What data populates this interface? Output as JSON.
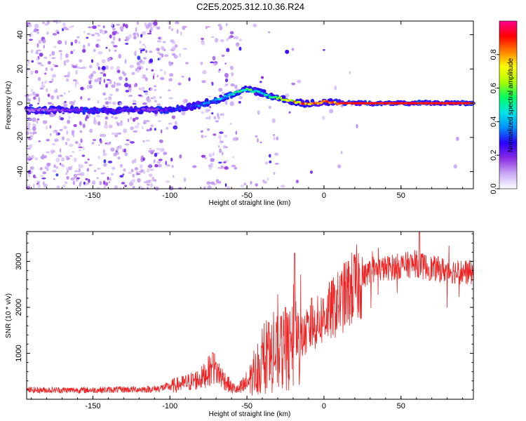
{
  "title": "C2E5.2025.312.10.36.R24",
  "chart_data": [
    {
      "type": "heatmap",
      "name": "spectrogram",
      "xlabel": "Height of straight line (km)",
      "ylabel": "Frequency (Hz)",
      "xlim": [
        -193,
        97
      ],
      "ylim": [
        -50,
        48
      ],
      "xticks": [
        -150,
        -100,
        -50,
        0,
        50
      ],
      "xtick_labels": [
        "-150",
        "-100",
        "-50",
        "0",
        "50"
      ],
      "yticks": [
        -40,
        -20,
        0,
        20,
        40
      ],
      "ytick_labels": [
        "-40",
        "-20",
        "0",
        "20",
        "40"
      ],
      "colorbar": {
        "label": "Normalized spectral amplitude",
        "range": [
          0,
          1
        ],
        "ticks": [
          0.0,
          0.2,
          0.4,
          0.6,
          0.8
        ],
        "tick_labels": [
          "0.0",
          "0.2",
          "0.4",
          "0.6",
          "0.8"
        ],
        "colors": [
          "#ffffff",
          "#c9a8f5",
          "#8a2be2",
          "#2a00ff",
          "#0090ff",
          "#00e5e5",
          "#00ff60",
          "#aaff00",
          "#ffff00",
          "#ff8000",
          "#ff0000",
          "#ff0090"
        ]
      },
      "ridge": {
        "x": [
          -193,
          -170,
          -150,
          -130,
          -110,
          -100,
          -90,
          -80,
          -70,
          -60,
          -55,
          -50,
          -45,
          -40,
          -35,
          -30,
          -25,
          -20,
          -15,
          -10,
          -5,
          0,
          5,
          10,
          20,
          40,
          60,
          97
        ],
        "freq": [
          -4,
          -4,
          -4,
          -4,
          -4,
          -4,
          -3,
          -1,
          2,
          5,
          7,
          8,
          7,
          6,
          4,
          3,
          2,
          1,
          0,
          -0.5,
          0,
          1,
          0.5,
          0,
          0,
          0,
          0,
          0
        ],
        "amplitude": [
          0.15,
          0.2,
          0.3,
          0.25,
          0.2,
          0.25,
          0.3,
          0.35,
          0.4,
          0.45,
          0.55,
          0.6,
          0.5,
          0.45,
          0.5,
          0.55,
          0.65,
          0.75,
          0.85,
          0.9,
          0.8,
          0.85,
          0.9,
          0.95,
          0.95,
          0.95,
          0.95,
          0.95
        ]
      }
    },
    {
      "type": "line",
      "name": "snr",
      "xlabel": "Height of straight line (km)",
      "ylabel": "SNR (10 * v/v)",
      "xlim": [
        -193,
        97
      ],
      "ylim": [
        0,
        3650
      ],
      "xticks": [
        -150,
        -100,
        -50,
        0,
        50
      ],
      "xtick_labels": [
        "-150",
        "-100",
        "-50",
        "0",
        "50"
      ],
      "yticks": [
        1000,
        2000,
        3000
      ],
      "ytick_labels": [
        "1000",
        "2000",
        "3000"
      ],
      "color": "#ee2222",
      "envelope": {
        "x": [
          -193,
          -150,
          -110,
          -100,
          -90,
          -80,
          -72,
          -68,
          -60,
          -55,
          -50,
          -45,
          -40,
          -35,
          -30,
          -25,
          -20,
          -15,
          -10,
          -5,
          0,
          5,
          10,
          15,
          20,
          25,
          30,
          40,
          50,
          60,
          70,
          80,
          97
        ],
        "y": [
          200,
          200,
          220,
          280,
          350,
          450,
          700,
          550,
          250,
          200,
          350,
          550,
          700,
          850,
          1000,
          1050,
          1100,
          1300,
          1500,
          1650,
          1800,
          1950,
          2100,
          2300,
          2450,
          2650,
          2800,
          2850,
          2900,
          2950,
          2850,
          2800,
          2750
        ]
      },
      "spikes": [
        {
          "x": -72,
          "y": 1000
        },
        {
          "x": -25,
          "y": 2000
        },
        {
          "x": -19,
          "y": 3180
        },
        {
          "x": -8,
          "y": 2200
        },
        {
          "x": 62,
          "y": 3650
        }
      ]
    }
  ]
}
